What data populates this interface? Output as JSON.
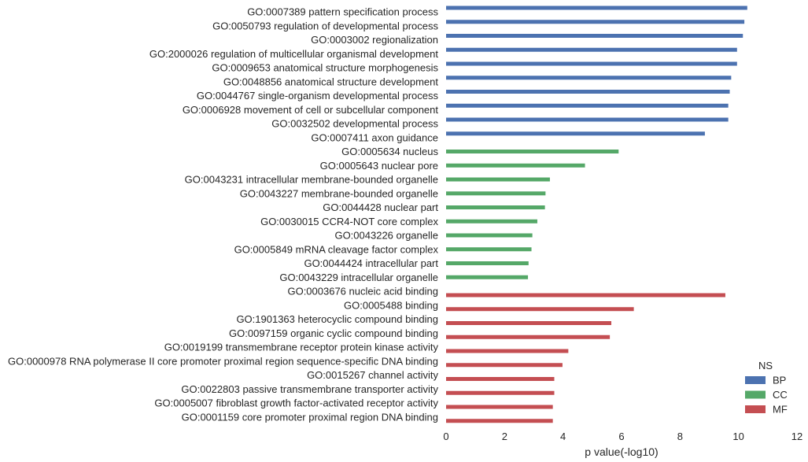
{
  "chart_data": {
    "type": "bar",
    "orientation": "horizontal",
    "xlabel": "p value(-log10)",
    "xlim": [
      0,
      12
    ],
    "xticks": [
      0,
      2,
      4,
      6,
      8,
      10,
      12
    ],
    "grid": false,
    "legend": {
      "title": "NS",
      "placement": "bottom-right",
      "entries": [
        {
          "name": "BP",
          "color": "#4c72b0"
        },
        {
          "name": "CC",
          "color": "#55a868"
        },
        {
          "name": "MF",
          "color": "#c44e52"
        }
      ]
    },
    "categories": [
      "GO:0007389 pattern specification process",
      "GO:0050793 regulation of developmental process",
      "GO:0003002 regionalization",
      "GO:2000026 regulation of multicellular organismal development",
      "GO:0009653 anatomical structure morphogenesis",
      "GO:0048856 anatomical structure development",
      "GO:0044767 single-organism developmental process",
      "GO:0006928 movement of cell or subcellular component",
      "GO:0032502 developmental process",
      "GO:0007411 axon guidance",
      "GO:0005634 nucleus",
      "GO:0005643 nuclear pore",
      "GO:0043231 intracellular membrane-bounded organelle",
      "GO:0043227 membrane-bounded organelle",
      "GO:0044428 nuclear part",
      "GO:0030015 CCR4-NOT core complex",
      "GO:0043226 organelle",
      "GO:0005849 mRNA cleavage factor complex",
      "GO:0044424 intracellular part",
      "GO:0043229 intracellular organelle",
      "GO:0003676 nucleic acid binding",
      "GO:0005488 binding",
      "GO:1901363 heterocyclic compound binding",
      "GO:0097159 organic cyclic compound binding",
      "GO:0019199 transmembrane receptor protein kinase activity",
      "GO:0000978 RNA polymerase II core promoter proximal region sequence-specific DNA binding",
      "GO:0015267 channel activity",
      "GO:0022803 passive transmembrane transporter activity",
      "GO:0005007 fibroblast growth factor-activated receptor activity",
      "GO:0001159 core promoter proximal region DNA binding"
    ],
    "series": [
      {
        "name": "BP",
        "color": "#4c72b0",
        "values": [
          10.3,
          10.2,
          10.15,
          9.95,
          9.95,
          9.75,
          9.7,
          9.65,
          9.65,
          8.85,
          null,
          null,
          null,
          null,
          null,
          null,
          null,
          null,
          null,
          null,
          null,
          null,
          null,
          null,
          null,
          null,
          null,
          null,
          null,
          null
        ]
      },
      {
        "name": "CC",
        "color": "#55a868",
        "values": [
          null,
          null,
          null,
          null,
          null,
          null,
          null,
          null,
          null,
          null,
          5.9,
          4.75,
          3.55,
          3.4,
          3.38,
          3.12,
          2.95,
          2.92,
          2.82,
          2.8,
          null,
          null,
          null,
          null,
          null,
          null,
          null,
          null,
          null,
          null
        ]
      },
      {
        "name": "MF",
        "color": "#c44e52",
        "values": [
          null,
          null,
          null,
          null,
          null,
          null,
          null,
          null,
          null,
          null,
          null,
          null,
          null,
          null,
          null,
          null,
          null,
          null,
          null,
          null,
          9.55,
          6.42,
          5.65,
          5.6,
          4.18,
          3.98,
          3.7,
          3.7,
          3.65,
          3.65
        ]
      }
    ]
  }
}
